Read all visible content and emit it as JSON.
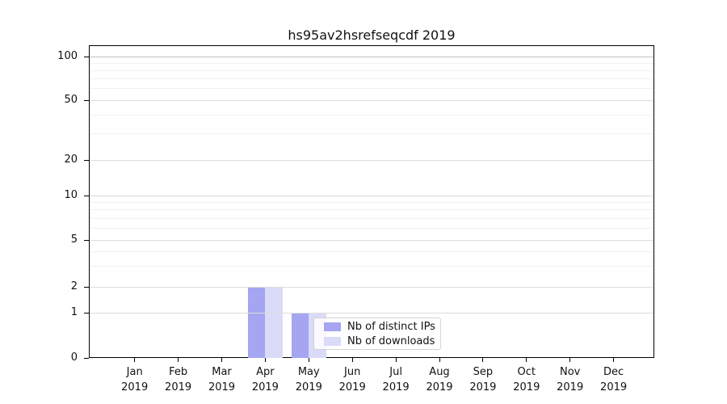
{
  "chart_data": {
    "type": "bar",
    "title": "hs95av2hsrefseqcdf 2019",
    "categories": [
      {
        "month": "Jan",
        "year": "2019"
      },
      {
        "month": "Feb",
        "year": "2019"
      },
      {
        "month": "Mar",
        "year": "2019"
      },
      {
        "month": "Apr",
        "year": "2019"
      },
      {
        "month": "May",
        "year": "2019"
      },
      {
        "month": "Jun",
        "year": "2019"
      },
      {
        "month": "Jul",
        "year": "2019"
      },
      {
        "month": "Aug",
        "year": "2019"
      },
      {
        "month": "Sep",
        "year": "2019"
      },
      {
        "month": "Oct",
        "year": "2019"
      },
      {
        "month": "Nov",
        "year": "2019"
      },
      {
        "month": "Dec",
        "year": "2019"
      }
    ],
    "series": [
      {
        "name": "Nb of distinct IPs",
        "color": "#a5a5f2",
        "values": [
          0,
          0,
          0,
          2,
          1,
          0,
          0,
          0,
          0,
          0,
          0,
          0
        ]
      },
      {
        "name": "Nb of downloads",
        "color": "#dadaf9",
        "values": [
          0,
          0,
          0,
          2,
          1,
          0,
          0,
          0,
          0,
          0,
          0,
          0
        ]
      }
    ],
    "y_axis": {
      "scale": "symlog",
      "ticks": [
        0,
        1,
        2,
        5,
        10,
        20,
        50,
        100
      ],
      "minor_ticks": [
        3,
        4,
        6,
        7,
        8,
        9,
        30,
        40,
        60,
        70,
        80,
        90
      ],
      "range": [
        0,
        120
      ]
    },
    "legend": {
      "entries": [
        "Nb of distinct IPs",
        "Nb of downloads"
      ],
      "position": "lower-center-left"
    },
    "grid": "on",
    "xlabel": "",
    "ylabel": ""
  }
}
